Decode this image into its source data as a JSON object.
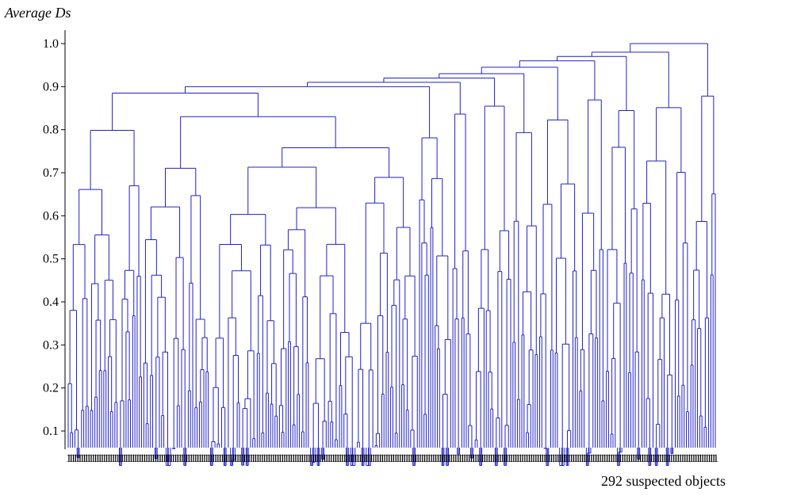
{
  "chart_data": {
    "type": "dendrogram",
    "title": "",
    "ylabel": "Average Ds",
    "xlabel": "292 suspected objects",
    "ylim": [
      0.05,
      1.0
    ],
    "y_ticks": [
      0.1,
      0.2,
      0.3,
      0.4,
      0.5,
      0.6,
      0.7,
      0.8,
      0.9,
      1.0
    ],
    "leaf_count": 292,
    "leaf_label_text": "1",
    "max_merge_height": 1.0,
    "upper_merges": [
      {
        "height": 1.0,
        "description": "root merge of the two largest clusters"
      },
      {
        "height": 0.98
      },
      {
        "height": 0.97
      },
      {
        "height": 0.96
      },
      {
        "height": 0.945
      },
      {
        "height": 0.93
      },
      {
        "height": 0.92
      },
      {
        "height": 0.91
      },
      {
        "height": 0.9
      },
      {
        "height": 0.885
      }
    ],
    "line_color": "#2020c8",
    "axis_color": "#000000",
    "grid": false
  }
}
